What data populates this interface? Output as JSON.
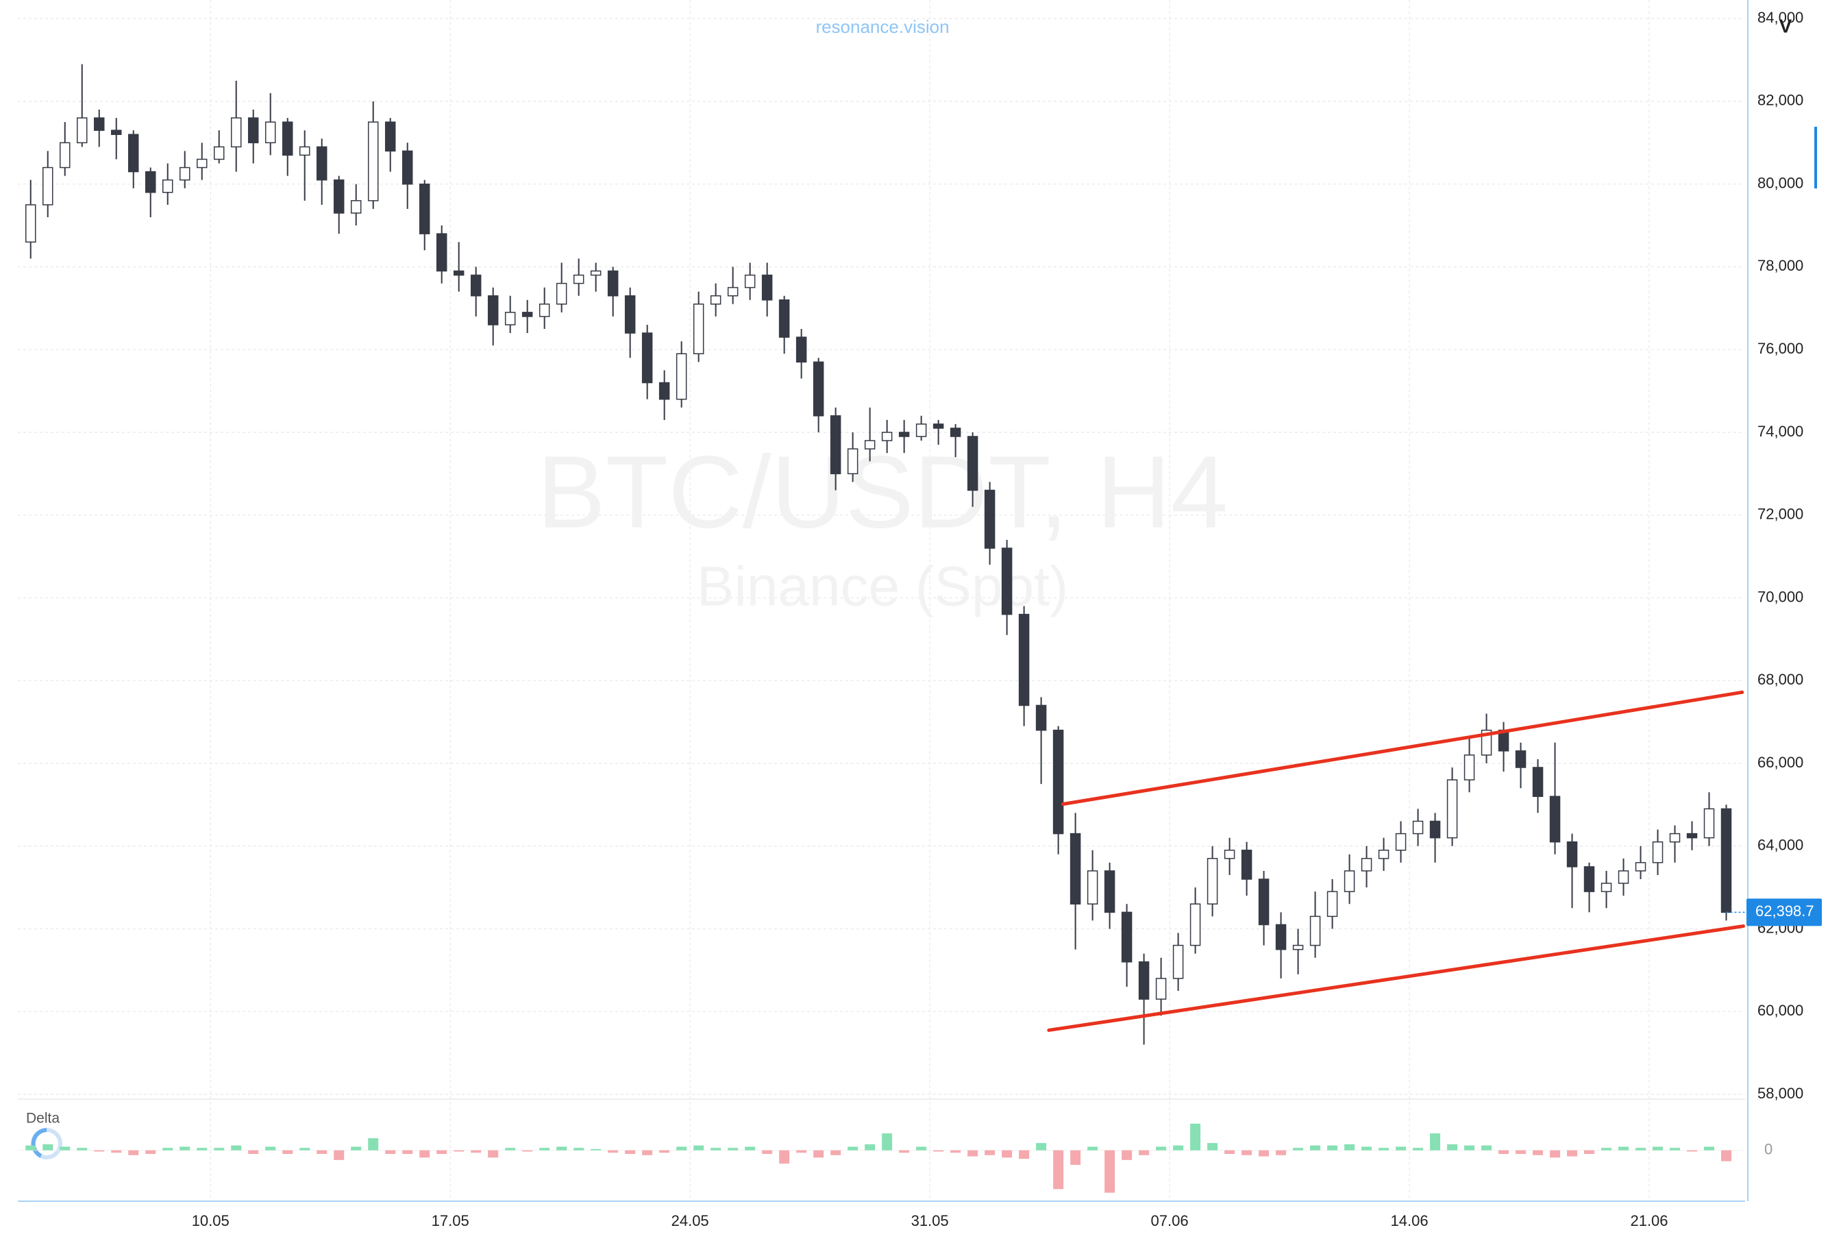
{
  "header": {
    "site": "resonance.vision",
    "scale_button": "V"
  },
  "chart_data": {
    "type": "candlestick",
    "watermark": "BTC/USDT, H4",
    "watermark_subtitle": "Binance (Spot)",
    "categories": [
      null,
      null,
      null,
      null,
      null,
      null,
      null,
      null,
      null,
      null,
      null,
      null,
      null,
      null,
      null,
      null,
      null,
      null,
      null,
      null,
      null,
      null,
      null,
      null,
      null,
      null,
      null,
      null,
      null,
      null,
      null,
      null,
      null,
      null,
      null,
      null,
      null,
      null,
      null,
      null,
      null,
      null,
      null,
      null,
      null,
      null,
      null,
      null,
      null,
      null,
      null,
      null,
      null,
      null,
      null,
      null,
      null,
      null,
      null,
      null,
      null,
      null,
      null,
      null,
      null,
      null,
      null,
      null,
      null,
      null,
      null,
      null,
      null,
      null,
      null,
      null,
      null,
      null,
      null,
      null,
      null,
      null,
      null,
      null,
      null,
      null,
      null,
      null,
      null,
      null,
      null,
      null,
      null,
      null,
      null,
      null,
      null,
      null,
      null,
      null
    ],
    "open": [
      78600,
      79500,
      80400,
      81000,
      81600,
      81300,
      81200,
      80300,
      79800,
      80100,
      80400,
      80600,
      80900,
      81600,
      81000,
      81500,
      80700,
      80900,
      80100,
      79300,
      79600,
      81500,
      80800,
      80000,
      78800,
      77900,
      77800,
      77300,
      76600,
      76900,
      76800,
      77100,
      77600,
      77800,
      77900,
      77300,
      76400,
      75200,
      74800,
      75900,
      77100,
      77300,
      77500,
      77800,
      77200,
      76300,
      75700,
      74400,
      73000,
      73600,
      73800,
      74000,
      73900,
      74200,
      74100,
      73900,
      72600,
      71200,
      69600,
      67400,
      66800,
      64300,
      62600,
      63400,
      62400,
      61200,
      60300,
      60800,
      61600,
      62600,
      63700,
      63900,
      63200,
      62100,
      61500,
      61600,
      62300,
      62900,
      63400,
      63700,
      63900,
      64300,
      64600,
      64200,
      65600,
      66200,
      66800,
      66300,
      65900,
      65200,
      64100,
      63500,
      62900,
      63100,
      63400,
      63600,
      64100,
      64300,
      64200,
      64900
    ],
    "high": [
      80100,
      80800,
      81500,
      82900,
      81800,
      81600,
      81300,
      80400,
      80500,
      80800,
      81000,
      81300,
      82500,
      81800,
      82200,
      81600,
      81300,
      81100,
      80200,
      80000,
      82000,
      81600,
      81000,
      80100,
      79000,
      78600,
      78000,
      77500,
      77300,
      77200,
      77500,
      78100,
      78200,
      78100,
      78000,
      77500,
      76600,
      75500,
      76200,
      77400,
      77600,
      78000,
      78100,
      78100,
      77300,
      76500,
      75800,
      74600,
      74000,
      74600,
      74300,
      74300,
      74400,
      74300,
      74200,
      74000,
      72800,
      71400,
      69800,
      67600,
      66900,
      64800,
      63900,
      63600,
      62600,
      61400,
      61300,
      61900,
      63000,
      64000,
      64200,
      64100,
      63400,
      62400,
      62000,
      62900,
      63200,
      63800,
      64000,
      64200,
      64600,
      64900,
      64800,
      65900,
      66600,
      67200,
      67000,
      66500,
      66100,
      66500,
      64300,
      63600,
      63400,
      63700,
      64000,
      64400,
      64500,
      64600,
      65300,
      65000
    ],
    "low": [
      78200,
      79200,
      80200,
      80900,
      80900,
      80600,
      79900,
      79200,
      79500,
      79900,
      80100,
      80500,
      80300,
      80500,
      80700,
      80200,
      79600,
      79500,
      78800,
      79000,
      79400,
      80300,
      79400,
      78400,
      77600,
      77400,
      76800,
      76100,
      76400,
      76400,
      76500,
      76900,
      77300,
      77400,
      76800,
      75800,
      74800,
      74300,
      74600,
      75700,
      76800,
      77100,
      77200,
      76800,
      75900,
      75300,
      74000,
      72600,
      72800,
      73300,
      73500,
      73500,
      73800,
      73700,
      73400,
      72200,
      70800,
      69100,
      66900,
      65500,
      63800,
      61500,
      62200,
      62000,
      60600,
      59200,
      59900,
      60500,
      61400,
      62300,
      63300,
      62800,
      61600,
      60800,
      60900,
      61300,
      62000,
      62600,
      63000,
      63400,
      63600,
      64000,
      63600,
      64000,
      65300,
      66000,
      65800,
      65400,
      64800,
      63800,
      62500,
      62400,
      62500,
      62800,
      63200,
      63300,
      63600,
      63900,
      64000,
      62200
    ],
    "close": [
      79500,
      80400,
      81000,
      81600,
      81300,
      81200,
      80300,
      79800,
      80100,
      80400,
      80600,
      80900,
      81600,
      81000,
      81500,
      80700,
      80900,
      80100,
      79300,
      79600,
      81500,
      80800,
      80000,
      78800,
      77900,
      77800,
      77300,
      76600,
      76900,
      76800,
      77100,
      77600,
      77800,
      77900,
      77300,
      76400,
      75200,
      74800,
      75900,
      77100,
      77300,
      77500,
      77800,
      77200,
      76300,
      75700,
      74400,
      73000,
      73600,
      73800,
      74000,
      73900,
      74200,
      74100,
      73900,
      72600,
      71200,
      69600,
      67400,
      66800,
      64300,
      62600,
      63400,
      62400,
      61200,
      60300,
      60800,
      61600,
      62600,
      63700,
      63900,
      63200,
      62100,
      61500,
      61600,
      62300,
      62900,
      63400,
      63700,
      63900,
      64300,
      64600,
      64200,
      65600,
      66200,
      66800,
      66300,
      65900,
      65200,
      64100,
      63500,
      62900,
      63100,
      63400,
      63600,
      64100,
      64300,
      64200,
      64900,
      62398.7
    ],
    "up_color": "#ffffff",
    "down_color": "#363a45",
    "wick_color": "#363a45",
    "xlim": [
      -0.75,
      100.1
    ],
    "xticks": [
      {
        "value": 10.5,
        "label": "10.05"
      },
      {
        "value": 24.5,
        "label": "17.05"
      },
      {
        "value": 38.5,
        "label": "24.05"
      },
      {
        "value": 52.5,
        "label": "31.05"
      },
      {
        "value": 66.5,
        "label": "07.06"
      },
      {
        "value": 80.5,
        "label": "14.06"
      },
      {
        "value": 94.5,
        "label": "21.06"
      }
    ],
    "ylim": [
      57950,
      84450
    ],
    "yticks": [
      {
        "value": 58000,
        "label": "58,000"
      },
      {
        "value": 60000,
        "label": "60,000"
      },
      {
        "value": 62000,
        "label": "62,000"
      },
      {
        "value": 64000,
        "label": "64,000"
      },
      {
        "value": 66000,
        "label": "66,000"
      },
      {
        "value": 68000,
        "label": "68,000"
      },
      {
        "value": 70000,
        "label": "70,000"
      },
      {
        "value": 72000,
        "label": "72,000"
      },
      {
        "value": 74000,
        "label": "74,000"
      },
      {
        "value": 76000,
        "label": "76,000"
      },
      {
        "value": 78000,
        "label": "78,000"
      },
      {
        "value": 80000,
        "label": "80,000"
      },
      {
        "value": 82000,
        "label": "82,000"
      },
      {
        "value": 84000,
        "label": "84,000"
      }
    ],
    "grid": true,
    "last_price": {
      "value": 62398.7,
      "label": "62,398.7",
      "color": "#1e88e5"
    },
    "trend_lines": [
      {
        "color": "#e8321e",
        "x": [
          60.27,
          99.93
        ],
        "y": [
          65014,
          67718
        ]
      },
      {
        "color": "#e8321e",
        "x": [
          59.45,
          100.0
        ],
        "y": [
          59549,
          62065
        ]
      }
    ],
    "delta": {
      "name": "Delta",
      "values": [
        4,
        5,
        3,
        2,
        -1,
        -2,
        -4,
        -3,
        2,
        3,
        2,
        2,
        4,
        -3,
        3,
        -3,
        2,
        -3,
        -8,
        3,
        10,
        -3,
        -3,
        -6,
        -3,
        -1,
        -2,
        -6,
        2,
        -1,
        2,
        3,
        2,
        1,
        -2,
        -3,
        -4,
        -2,
        3,
        4,
        2,
        2,
        3,
        -3,
        -11,
        -2,
        -6,
        -4,
        3,
        5,
        14,
        -2,
        3,
        -1,
        -2,
        -5,
        -4,
        -6,
        -7,
        6,
        -32,
        -12,
        3,
        -35,
        -8,
        -4,
        3,
        4,
        22,
        6,
        -3,
        -4,
        -5,
        -4,
        2,
        4,
        4,
        5,
        3,
        2,
        3,
        2,
        14,
        5,
        4,
        4,
        -3,
        -3,
        -4,
        -6,
        -5,
        -3,
        2,
        3,
        2,
        3,
        2,
        -1,
        3,
        -9
      ],
      "ylim": [
        -42,
        40
      ],
      "yticks": [
        0
      ],
      "up_color": "#86e0b3",
      "down_color": "#f5a9ae"
    }
  }
}
